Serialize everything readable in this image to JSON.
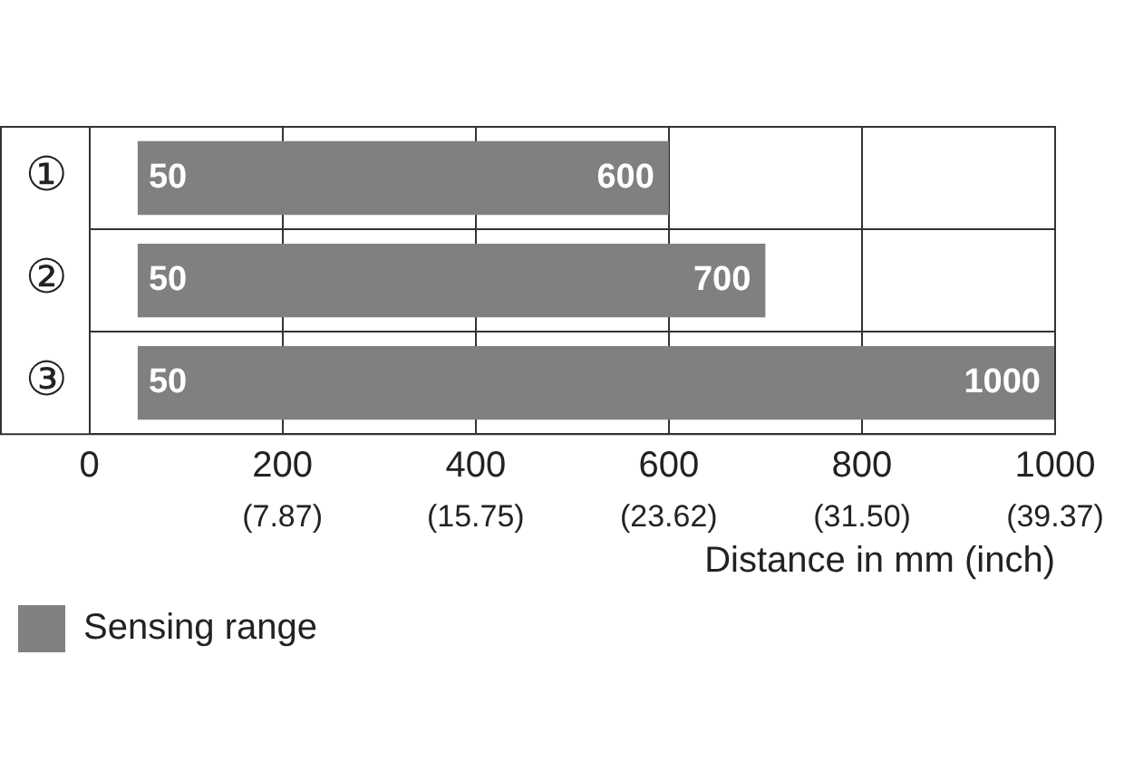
{
  "chart_data": {
    "type": "bar",
    "orientation": "horizontal",
    "categories": [
      "①",
      "②",
      "③"
    ],
    "series": [
      {
        "name": "Sensing range",
        "color": "#808080",
        "values": [
          550,
          650,
          950
        ],
        "base": [
          50,
          50,
          50
        ]
      }
    ],
    "xlim": [
      0,
      1000
    ],
    "xticks": [
      0,
      200,
      400,
      600,
      800,
      1000
    ],
    "x2lim": [
      0,
      39.37
    ],
    "x2ticks": [
      {
        "value": 7.87,
        "label": "(7.87)"
      },
      {
        "value": 15.75,
        "label": "(15.75)"
      },
      {
        "value": 23.62,
        "label": "(23.62)"
      },
      {
        "value": 31.5,
        "label": "(31.50)"
      },
      {
        "value": 39.37,
        "label": "(39.37)"
      }
    ],
    "xlabel": "Distance in mm (inch)",
    "grid": true,
    "legend": "bottom left",
    "annotations": [
      "50",
      "600",
      "50",
      "700",
      "50",
      "1000"
    ]
  }
}
